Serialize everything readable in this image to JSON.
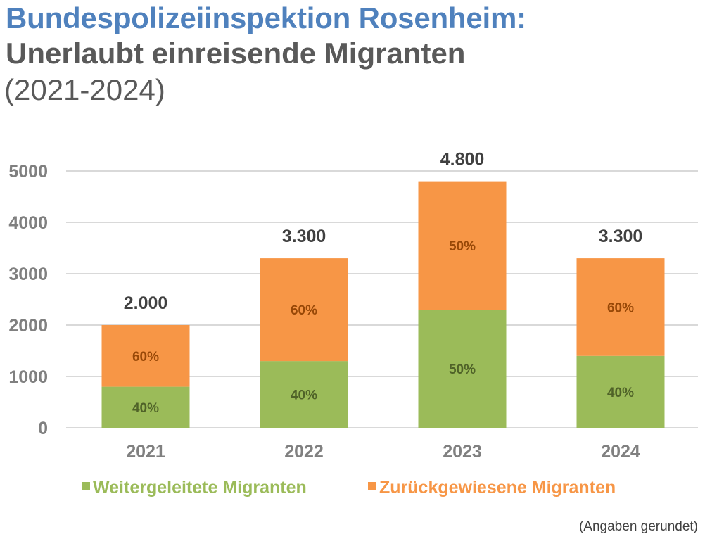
{
  "title": {
    "line1": "Bundespolizeiinspektion Rosenheim:",
    "line2": "Unerlaubt einreisende Migranten",
    "line3": "(2021-2024)"
  },
  "footnote": "(Angaben gerundet)",
  "chart_data": {
    "type": "bar",
    "stacked": true,
    "title": "Bundespolizeiinspektion Rosenheim: Unerlaubt einreisende Migranten (2021-2024)",
    "xlabel": "",
    "ylabel": "",
    "ylim": [
      0,
      5000
    ],
    "yticks": [
      0,
      1000,
      2000,
      3000,
      4000,
      5000
    ],
    "ytick_labels": [
      "0",
      "1000",
      "2000",
      "3000",
      "4000",
      "5000"
    ],
    "grid": true,
    "legend_position": "bottom",
    "categories": [
      "2021",
      "2022",
      "2023",
      "2024"
    ],
    "totals": [
      2000,
      3300,
      4800,
      3300
    ],
    "total_labels": [
      "2.000",
      "3.300",
      "4.800",
      "3.300"
    ],
    "series": [
      {
        "name": "Weitergeleitete Migranten",
        "color": "#9bbb59",
        "label_color": "#4f6228",
        "values": [
          800,
          1300,
          2300,
          1400
        ],
        "labels": [
          "40%",
          "40%",
          "50%",
          "40%"
        ]
      },
      {
        "name": "Zurückgewiesene Migranten",
        "color": "#f79646",
        "label_color": "#984807",
        "values": [
          1200,
          2000,
          2500,
          1900
        ],
        "labels": [
          "60%",
          "60%",
          "50%",
          "60%"
        ]
      }
    ]
  }
}
